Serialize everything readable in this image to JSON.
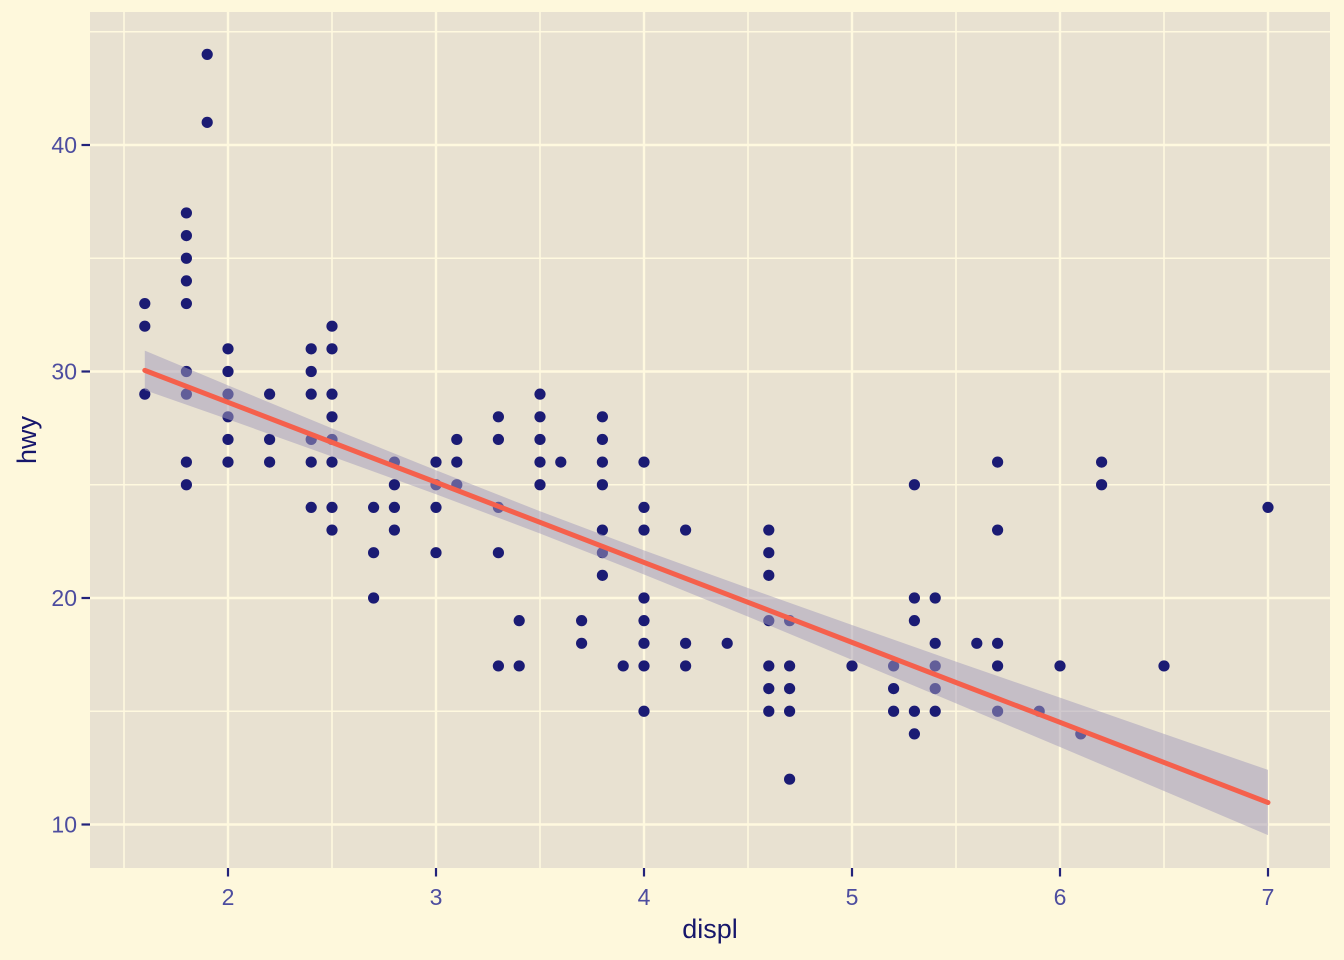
{
  "figure": {
    "background_color": "#FEF8DC",
    "panel_color": "#E8E1D1",
    "grid_color": "#FFF9DF",
    "tick_label_color": "#4D4D9F",
    "axis_title_color": "#16166B",
    "tick_mark_color": "#23237A"
  },
  "chart_data": {
    "type": "scatter",
    "title": "",
    "xlabel": "displ",
    "ylabel": "hwy",
    "x_range": [
      1.34,
      7.3
    ],
    "y_range": [
      8.1,
      45.9
    ],
    "x_ticks": [
      2,
      3,
      4,
      5,
      6,
      7
    ],
    "y_ticks": [
      10,
      20,
      30,
      40
    ],
    "x_minor_gridlines": [
      1.5,
      2.5,
      3.5,
      4.5,
      5.5,
      6.5
    ],
    "y_minor_gridlines": [
      15,
      25,
      35,
      45
    ],
    "grid": "on",
    "legend": "none",
    "point_color": "#1B1B74",
    "point_radius": 5.6,
    "points": [
      [
        1.6,
        33
      ],
      [
        1.6,
        32
      ],
      [
        1.6,
        29
      ],
      [
        1.8,
        37
      ],
      [
        1.8,
        36
      ],
      [
        1.8,
        35
      ],
      [
        1.8,
        34
      ],
      [
        1.8,
        33
      ],
      [
        1.8,
        30
      ],
      [
        1.8,
        29
      ],
      [
        1.8,
        26
      ],
      [
        1.8,
        25
      ],
      [
        1.9,
        44
      ],
      [
        1.9,
        41
      ],
      [
        2.0,
        31
      ],
      [
        2.0,
        30
      ],
      [
        2.0,
        29
      ],
      [
        2.0,
        28
      ],
      [
        2.0,
        27
      ],
      [
        2.0,
        26
      ],
      [
        2.2,
        29
      ],
      [
        2.2,
        27
      ],
      [
        2.2,
        26
      ],
      [
        2.4,
        31
      ],
      [
        2.4,
        30
      ],
      [
        2.4,
        29
      ],
      [
        2.4,
        27
      ],
      [
        2.4,
        26
      ],
      [
        2.4,
        24
      ],
      [
        2.5,
        32
      ],
      [
        2.5,
        31
      ],
      [
        2.5,
        29
      ],
      [
        2.5,
        28
      ],
      [
        2.5,
        27
      ],
      [
        2.5,
        26
      ],
      [
        2.5,
        24
      ],
      [
        2.5,
        23
      ],
      [
        2.7,
        24
      ],
      [
        2.7,
        22
      ],
      [
        2.7,
        20
      ],
      [
        2.8,
        26
      ],
      [
        2.8,
        25
      ],
      [
        2.8,
        24
      ],
      [
        2.8,
        23
      ],
      [
        3.0,
        26
      ],
      [
        3.0,
        25
      ],
      [
        3.0,
        24
      ],
      [
        3.0,
        22
      ],
      [
        3.1,
        27
      ],
      [
        3.1,
        26
      ],
      [
        3.1,
        25
      ],
      [
        3.3,
        28
      ],
      [
        3.3,
        27
      ],
      [
        3.3,
        24
      ],
      [
        3.3,
        22
      ],
      [
        3.3,
        17
      ],
      [
        3.4,
        19
      ],
      [
        3.4,
        17
      ],
      [
        3.5,
        29
      ],
      [
        3.5,
        28
      ],
      [
        3.5,
        27
      ],
      [
        3.5,
        26
      ],
      [
        3.5,
        25
      ],
      [
        3.6,
        26
      ],
      [
        3.7,
        19
      ],
      [
        3.7,
        18
      ],
      [
        3.8,
        28
      ],
      [
        3.8,
        27
      ],
      [
        3.8,
        26
      ],
      [
        3.8,
        25
      ],
      [
        3.8,
        23
      ],
      [
        3.8,
        22
      ],
      [
        3.8,
        21
      ],
      [
        3.9,
        17
      ],
      [
        4.0,
        26
      ],
      [
        4.0,
        24
      ],
      [
        4.0,
        23
      ],
      [
        4.0,
        20
      ],
      [
        4.0,
        19
      ],
      [
        4.0,
        18
      ],
      [
        4.0,
        17
      ],
      [
        4.0,
        15
      ],
      [
        4.2,
        23
      ],
      [
        4.2,
        18
      ],
      [
        4.2,
        17
      ],
      [
        4.4,
        18
      ],
      [
        4.6,
        23
      ],
      [
        4.6,
        22
      ],
      [
        4.6,
        21
      ],
      [
        4.6,
        19
      ],
      [
        4.6,
        17
      ],
      [
        4.6,
        16
      ],
      [
        4.6,
        15
      ],
      [
        4.7,
        19
      ],
      [
        4.7,
        17
      ],
      [
        4.7,
        16
      ],
      [
        4.7,
        15
      ],
      [
        4.7,
        12
      ],
      [
        5.0,
        17
      ],
      [
        5.2,
        17
      ],
      [
        5.2,
        16
      ],
      [
        5.2,
        15
      ],
      [
        5.3,
        25
      ],
      [
        5.3,
        20
      ],
      [
        5.3,
        19
      ],
      [
        5.3,
        15
      ],
      [
        5.3,
        14
      ],
      [
        5.4,
        20
      ],
      [
        5.4,
        18
      ],
      [
        5.4,
        17
      ],
      [
        5.4,
        16
      ],
      [
        5.4,
        15
      ],
      [
        5.6,
        18
      ],
      [
        5.7,
        26
      ],
      [
        5.7,
        23
      ],
      [
        5.7,
        18
      ],
      [
        5.7,
        17
      ],
      [
        5.7,
        15
      ],
      [
        5.9,
        15
      ],
      [
        6.0,
        17
      ],
      [
        6.1,
        14
      ],
      [
        6.2,
        26
      ],
      [
        6.2,
        25
      ],
      [
        6.5,
        17
      ],
      [
        7.0,
        24
      ]
    ],
    "smooth": {
      "method": "linear",
      "line_color": "#F5604C",
      "line_width": 5,
      "band_fill": "rgba(165,157,188,0.52)",
      "x": [
        1.6,
        2.0,
        2.5,
        3.0,
        3.5,
        4.0,
        4.5,
        5.0,
        5.5,
        6.0,
        6.5,
        7.0
      ],
      "fit": [
        30.05,
        28.64,
        26.87,
        25.11,
        23.34,
        21.57,
        19.81,
        18.04,
        16.27,
        14.51,
        12.74,
        10.97
      ],
      "lower": [
        29.18,
        27.89,
        26.25,
        24.58,
        22.85,
        21.04,
        19.18,
        17.27,
        15.35,
        13.42,
        11.48,
        9.53
      ],
      "upper": [
        30.92,
        29.39,
        27.49,
        25.64,
        23.83,
        22.1,
        20.44,
        18.81,
        17.19,
        15.6,
        14.0,
        12.41
      ]
    }
  }
}
